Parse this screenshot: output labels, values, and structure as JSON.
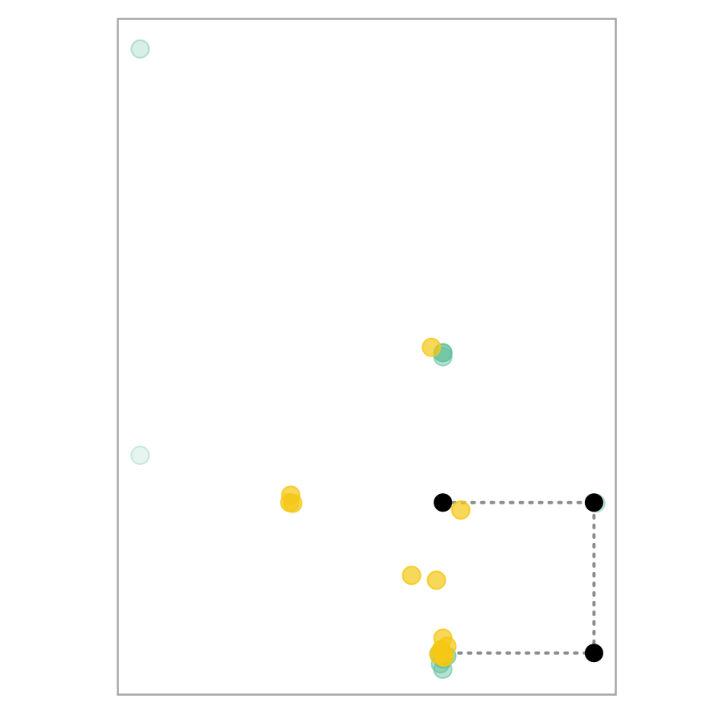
{
  "chart_data": {
    "type": "scatter",
    "title": "",
    "xlabel": "",
    "ylabel": "",
    "grid": false,
    "legend": "none",
    "xlim": [
      0,
      1
    ],
    "ylim": [
      0,
      1
    ],
    "colors": {
      "green": "#5fbf9a",
      "yellow": "#f5c816",
      "black": "#000000",
      "frame": "#a6a6a6",
      "connector": "#8c8c8c"
    },
    "series": [
      {
        "color_key": "green",
        "points": [
          {
            "x": 0.044,
            "y": 0.956,
            "alpha": 0.25
          },
          {
            "x": 0.044,
            "y": 0.354,
            "alpha": 0.15
          },
          {
            "x": 0.653,
            "y": 0.506,
            "alpha": 0.75
          },
          {
            "x": 0.653,
            "y": 0.5,
            "alpha": 0.45
          },
          {
            "x": 0.961,
            "y": 0.283,
            "alpha": 0.25
          },
          {
            "x": 0.661,
            "y": 0.057,
            "alpha": 0.55
          },
          {
            "x": 0.653,
            "y": 0.052,
            "alpha": 0.55
          },
          {
            "x": 0.648,
            "y": 0.045,
            "alpha": 0.45
          },
          {
            "x": 0.645,
            "y": 0.06,
            "alpha": 0.55
          },
          {
            "x": 0.653,
            "y": 0.037,
            "alpha": 0.45
          }
        ]
      },
      {
        "color_key": "yellow",
        "points": [
          {
            "x": 0.63,
            "y": 0.514,
            "alpha": 0.7
          },
          {
            "x": 0.347,
            "y": 0.295,
            "alpha": 0.7
          },
          {
            "x": 0.351,
            "y": 0.283,
            "alpha": 0.7
          },
          {
            "x": 0.345,
            "y": 0.284,
            "alpha": 0.7
          },
          {
            "x": 0.689,
            "y": 0.273,
            "alpha": 0.7
          },
          {
            "x": 0.59,
            "y": 0.176,
            "alpha": 0.7
          },
          {
            "x": 0.64,
            "y": 0.169,
            "alpha": 0.7
          },
          {
            "x": 0.653,
            "y": 0.083,
            "alpha": 0.7
          },
          {
            "x": 0.661,
            "y": 0.071,
            "alpha": 0.7
          },
          {
            "x": 0.645,
            "y": 0.059,
            "alpha": 0.75
          },
          {
            "x": 0.653,
            "y": 0.061,
            "alpha": 0.85
          },
          {
            "x": 0.655,
            "y": 0.055,
            "alpha": 0.85
          },
          {
            "x": 0.65,
            "y": 0.066,
            "alpha": 0.85
          }
        ]
      },
      {
        "color_key": "black",
        "points": [
          {
            "x": 0.653,
            "y": 0.284,
            "alpha": 1.0
          },
          {
            "x": 0.957,
            "y": 0.284,
            "alpha": 1.0
          },
          {
            "x": 0.957,
            "y": 0.061,
            "alpha": 1.0
          }
        ]
      }
    ],
    "connector": [
      {
        "x": 0.653,
        "y": 0.284
      },
      {
        "x": 0.957,
        "y": 0.284
      },
      {
        "x": 0.957,
        "y": 0.061
      },
      {
        "x": 0.653,
        "y": 0.061
      }
    ]
  }
}
